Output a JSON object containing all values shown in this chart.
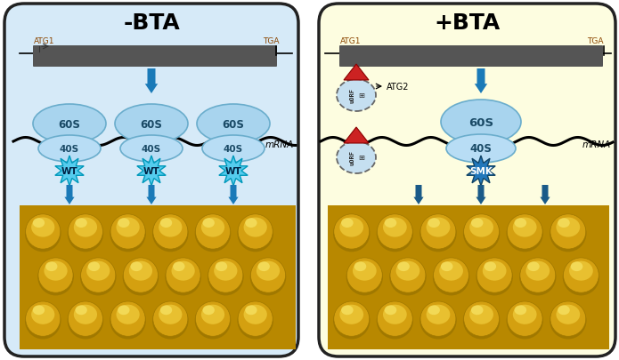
{
  "left_title": "-BTA",
  "right_title": "+BTA",
  "left_bg": "#d6eaf8",
  "right_bg": "#fdfde0",
  "box_edge": "#222222",
  "gene_bar_color": "#555555",
  "arrow_blue": "#1a7ab8",
  "arrow_blue_dark": "#1a5a88",
  "ribosome_60s_color": "#a8d4ee",
  "ribosome_40s_color": "#b8ddf5",
  "atg1_label": "ATG1",
  "tga_label": "TGA",
  "atg2_label": "ATG2",
  "mrna_label": "mRNA",
  "wt_label": "WT",
  "smk_label": "SMK",
  "60s_label": "60S",
  "40s_label": "40S",
  "corn_bg": "#c8960a",
  "corn_kernel": "#d4a010",
  "corn_kernel_mid": "#e8b820",
  "corn_kernel_hi": "#f5d060",
  "corn_shadow": "#a07008"
}
